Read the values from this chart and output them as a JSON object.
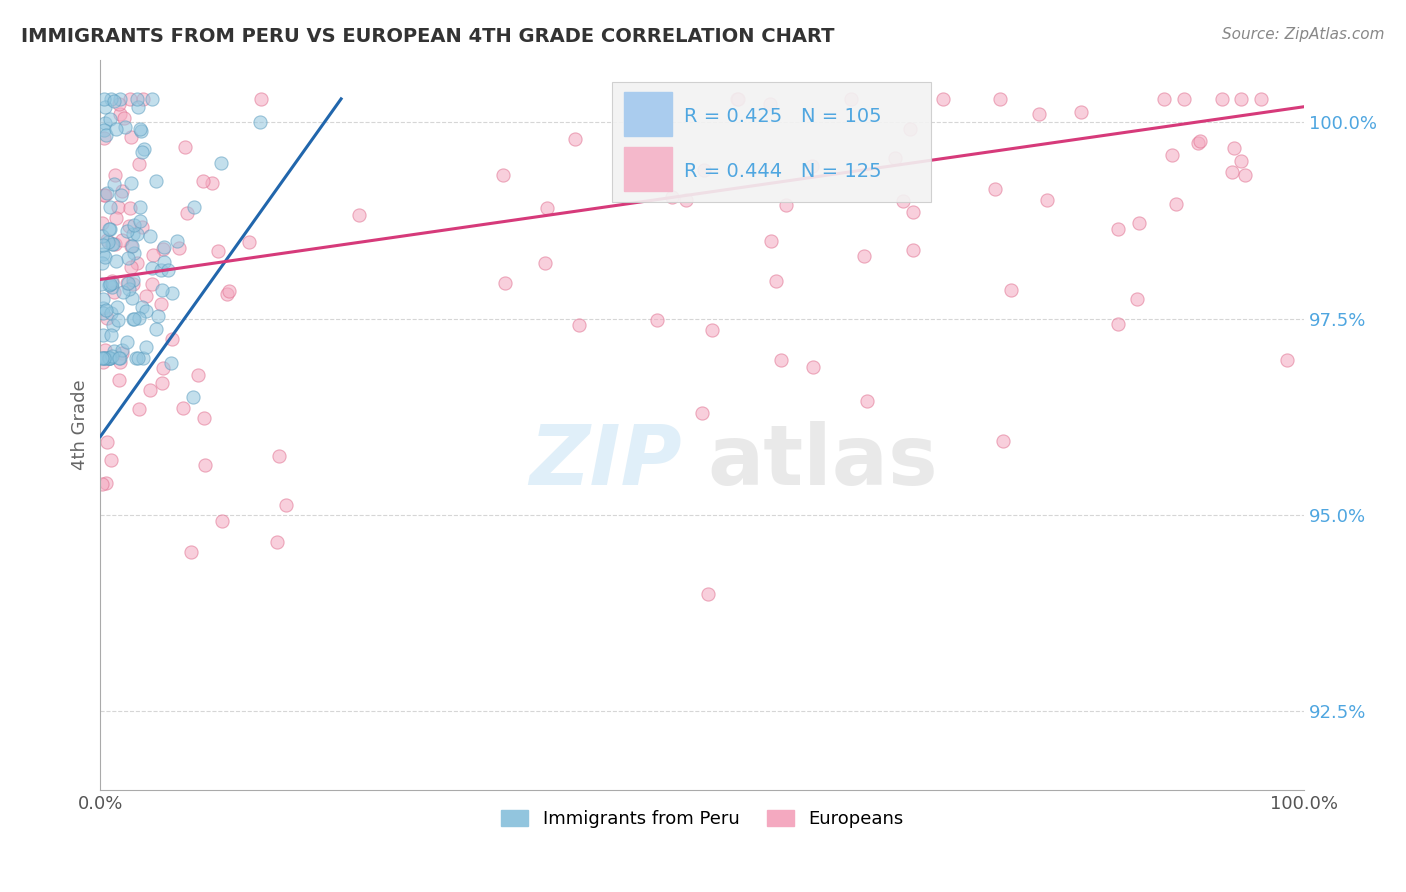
{
  "title": "IMMIGRANTS FROM PERU VS EUROPEAN 4TH GRADE CORRELATION CHART",
  "source": "Source: ZipAtlas.com",
  "ylabel": "4th Grade",
  "xlim": [
    0.0,
    100.0
  ],
  "ylim": [
    91.5,
    100.8
  ],
  "yticks": [
    92.5,
    95.0,
    97.5,
    100.0
  ],
  "ytick_labels": [
    "92.5%",
    "95.0%",
    "97.5%",
    "100.0%"
  ],
  "xticks": [
    0.0,
    100.0
  ],
  "xtick_labels": [
    "0.0%",
    "100.0%"
  ],
  "blue_R": 0.425,
  "blue_N": 105,
  "pink_R": 0.444,
  "pink_N": 125,
  "blue_color": "#92c5de",
  "pink_color": "#f4a9c0",
  "blue_edge_color": "#5b9dbf",
  "pink_edge_color": "#e07090",
  "blue_line_color": "#2166ac",
  "pink_line_color": "#d63a7a",
  "legend_blue_label": "Immigrants from Peru",
  "legend_pink_label": "Europeans",
  "blue_line_x0": 0.0,
  "blue_line_y0": 96.0,
  "blue_line_x1": 20.0,
  "blue_line_y1": 100.3,
  "pink_line_x0": 0.0,
  "pink_line_y0": 98.0,
  "pink_line_x1": 100.0,
  "pink_line_y1": 100.2,
  "tick_color": "#4fa6e0",
  "grid_color": "#cccccc",
  "ylabel_color": "#666666",
  "title_color": "#333333",
  "source_color": "#888888"
}
